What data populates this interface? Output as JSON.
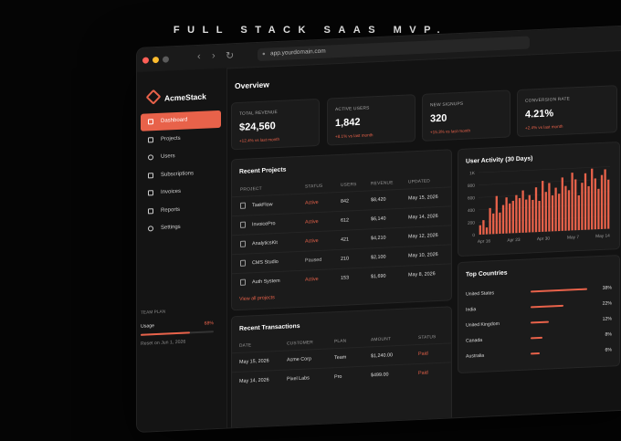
{
  "headline": "FULL STACK SAAS MVP.",
  "browser": {
    "url": "app.yourdomain.com",
    "back": "‹",
    "forward": "›",
    "reload": "↻"
  },
  "brand": {
    "name": "AcmeStack"
  },
  "sidebar": {
    "items": [
      {
        "label": "Dashboard",
        "icon": "grid-icon",
        "active": true
      },
      {
        "label": "Projects",
        "icon": "folder-icon"
      },
      {
        "label": "Users",
        "icon": "users-icon"
      },
      {
        "label": "Subscriptions",
        "icon": "card-icon"
      },
      {
        "label": "Invoices",
        "icon": "invoice-icon"
      },
      {
        "label": "Reports",
        "icon": "chart-icon"
      },
      {
        "label": "Settings",
        "icon": "gear-icon"
      }
    ],
    "plan": {
      "label": "TEAM PLAN",
      "usage_label": "Usage",
      "usage_pct": "68%",
      "usage_value": 0.68,
      "reset": "Reset on Jun 1, 2026"
    }
  },
  "overview": {
    "title": "Overview"
  },
  "kpis": [
    {
      "label": "TOTAL REVENUE",
      "value": "$24,560",
      "delta": "+12.4% vs last month"
    },
    {
      "label": "ACTIVE USERS",
      "value": "1,842",
      "delta": "+8.1% vs last month"
    },
    {
      "label": "NEW SIGNUPS",
      "value": "320",
      "delta": "+15.3% vs last month"
    },
    {
      "label": "CONVERSION RATE",
      "value": "4.21%",
      "delta": "+2.4% vs last month"
    }
  ],
  "projects": {
    "title": "Recent Projects",
    "columns": [
      "PROJECT",
      "STATUS",
      "USERS",
      "REVENUE",
      "UPDATED"
    ],
    "rows": [
      {
        "name": "TaskFlow",
        "status": "Active",
        "users": "842",
        "revenue": "$8,420",
        "updated": "May 15, 2026"
      },
      {
        "name": "InvoicePro",
        "status": "Active",
        "users": "612",
        "revenue": "$6,140",
        "updated": "May 14, 2026"
      },
      {
        "name": "AnalyticsKit",
        "status": "Active",
        "users": "421",
        "revenue": "$4,210",
        "updated": "May 12, 2026"
      },
      {
        "name": "CMS Studio",
        "status": "Paused",
        "users": "210",
        "revenue": "$2,100",
        "updated": "May 10, 2026"
      },
      {
        "name": "Auth System",
        "status": "Active",
        "users": "153",
        "revenue": "$1,690",
        "updated": "May 8, 2026"
      }
    ],
    "view_all": "View all projects"
  },
  "transactions": {
    "title": "Recent Transactions",
    "columns": [
      "DATE",
      "CUSTOMER",
      "PLAN",
      "AMOUNT",
      "STATUS"
    ],
    "rows": [
      {
        "date": "May 15, 2026",
        "customer": "Acme Corp",
        "plan": "Team",
        "amount": "$1,240.00",
        "status": "Paid"
      },
      {
        "date": "May 14, 2026",
        "customer": "Pixel Labs",
        "plan": "Pro",
        "amount": "$499.00",
        "status": "Paid"
      }
    ]
  },
  "activity": {
    "title": "User Activity (30 Days)",
    "chart_data": {
      "type": "bar",
      "title": "User Activity (30 Days)",
      "y_ticks": [
        "1K",
        "800",
        "600",
        "400",
        "200",
        "0"
      ],
      "ylim": [
        0,
        1000
      ],
      "x_ticks": [
        "Apr 16",
        "Apr 23",
        "Apr 30",
        "May 7",
        "May 14"
      ],
      "grid": true,
      "color": "#e8624a",
      "values": [
        150,
        230,
        110,
        420,
        330,
        610,
        340,
        460,
        580,
        480,
        520,
        610,
        560,
        680,
        530,
        600,
        520,
        720,
        500,
        820,
        640,
        780,
        580,
        700,
        600,
        860,
        720,
        650,
        930,
        820,
        560,
        760,
        910,
        700,
        980,
        820,
        650,
        870,
        960,
        790
      ]
    }
  },
  "countries": {
    "title": "Top Countries",
    "rows": [
      {
        "name": "United States",
        "pct": "38%",
        "value": 0.38
      },
      {
        "name": "India",
        "pct": "22%",
        "value": 0.22
      },
      {
        "name": "United Kingdom",
        "pct": "12%",
        "value": 0.12
      },
      {
        "name": "Canada",
        "pct": "8%",
        "value": 0.08
      },
      {
        "name": "Australia",
        "pct": "6%",
        "value": 0.06
      }
    ]
  }
}
